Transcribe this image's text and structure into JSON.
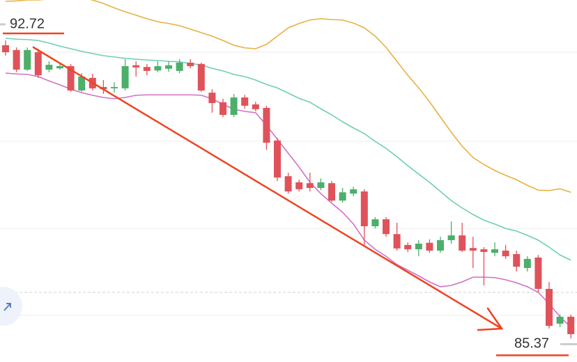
{
  "chart_data": {
    "type": "candlestick",
    "high_label": 92.72,
    "low_label": 85.37,
    "ylim": [
      84.96,
      93.28
    ],
    "up_color": "#4caf6a",
    "down_color": "#e0525a",
    "open": [
      92.24,
      92.13,
      91.68,
      92.08,
      91.68,
      91.71,
      91.76,
      91.2,
      91.49,
      91.28,
      91.25,
      91.25,
      91.78,
      91.74,
      91.66,
      91.7,
      91.65,
      91.84,
      91.81,
      91.15,
      90.93,
      90.64,
      91.04,
      90.88,
      90.8,
      90.05,
      89.23,
      89.09,
      89.07,
      88.96,
      89.07,
      88.67,
      88.83,
      88.88,
      88.08,
      88.24,
      87.9,
      87.65,
      87.55,
      87.7,
      87.52,
      87.76,
      87.87,
      87.58,
      87.55,
      87.47,
      87.52,
      87.44,
      87.12,
      87.36,
      86.64,
      85.84,
      86.0
    ],
    "high": [
      92.35,
      92.19,
      92.19,
      92.16,
      91.87,
      91.81,
      91.81,
      91.6,
      91.58,
      91.44,
      91.39,
      91.92,
      91.87,
      91.81,
      91.87,
      91.87,
      91.92,
      91.92,
      91.84,
      91.23,
      91.01,
      91.12,
      91.1,
      90.94,
      90.85,
      90.11,
      89.31,
      89.15,
      89.31,
      89.18,
      89.12,
      88.96,
      88.99,
      88.93,
      88.29,
      88.29,
      88.16,
      87.71,
      87.76,
      87.78,
      87.84,
      88.19,
      88.16,
      87.84,
      87.6,
      87.71,
      87.65,
      87.52,
      87.39,
      87.42,
      86.8,
      86.05,
      86.05
    ],
    "low": [
      92.0,
      91.62,
      91.65,
      91.49,
      91.62,
      91.68,
      91.17,
      91.17,
      91.2,
      91.12,
      91.15,
      91.2,
      91.52,
      91.55,
      91.62,
      91.63,
      91.6,
      91.71,
      91.17,
      90.69,
      90.59,
      90.59,
      90.78,
      90.72,
      89.84,
      89.12,
      88.83,
      88.88,
      88.88,
      88.91,
      88.64,
      88.62,
      88.77,
      87.65,
      88.03,
      87.84,
      87.52,
      87.49,
      87.39,
      87.47,
      87.47,
      87.68,
      87.49,
      87.12,
      86.72,
      87.39,
      87.33,
      87.04,
      87.04,
      86.56,
      85.73,
      85.76,
      85.5
    ],
    "close": [
      92.08,
      91.68,
      92.13,
      91.55,
      91.79,
      91.76,
      91.2,
      91.52,
      91.25,
      91.23,
      91.28,
      91.76,
      91.73,
      91.65,
      91.76,
      91.78,
      91.84,
      91.76,
      91.2,
      90.91,
      90.64,
      91.04,
      90.85,
      90.77,
      90.0,
      89.2,
      88.88,
      88.93,
      88.96,
      89.09,
      88.67,
      88.86,
      88.93,
      88.08,
      88.24,
      87.9,
      87.57,
      87.55,
      87.68,
      87.52,
      87.76,
      87.87,
      87.52,
      87.52,
      87.49,
      87.55,
      87.39,
      87.15,
      87.33,
      86.64,
      85.79,
      86.0,
      85.6
    ],
    "overlays": [
      {
        "color": "#e8b040",
        "values": [
          93.25,
          93.26,
          93.28,
          93.28,
          93.3,
          93.31,
          93.33,
          93.33,
          93.28,
          93.2,
          93.1,
          93.01,
          92.93,
          92.85,
          92.78,
          92.74,
          92.69,
          92.61,
          92.53,
          92.45,
          92.35,
          92.24,
          92.18,
          92.16,
          92.26,
          92.45,
          92.64,
          92.74,
          92.82,
          92.85,
          92.83,
          92.82,
          92.75,
          92.64,
          92.45,
          92.19,
          91.87,
          91.55,
          91.26,
          90.94,
          90.59,
          90.24,
          89.92,
          89.66,
          89.5,
          89.36,
          89.25,
          89.15,
          89.02,
          88.91,
          88.9,
          88.94,
          88.86
        ]
      },
      {
        "color": "#6ccfb0",
        "values": [
          92.4,
          92.38,
          92.37,
          92.35,
          92.29,
          92.22,
          92.16,
          92.1,
          92.05,
          92.0,
          91.97,
          91.94,
          91.92,
          91.9,
          91.89,
          91.87,
          91.86,
          91.82,
          91.79,
          91.71,
          91.65,
          91.57,
          91.52,
          91.44,
          91.34,
          91.26,
          91.14,
          91.02,
          90.93,
          90.78,
          90.64,
          90.48,
          90.34,
          90.21,
          90.03,
          89.87,
          89.68,
          89.47,
          89.28,
          89.09,
          88.88,
          88.67,
          88.5,
          88.35,
          88.22,
          88.13,
          88.03,
          87.97,
          87.87,
          87.76,
          87.6,
          87.42,
          87.3
        ]
      },
      {
        "color": "#d070c8",
        "values": [
          91.6,
          91.58,
          91.57,
          91.52,
          91.42,
          91.33,
          91.23,
          91.15,
          91.09,
          91.04,
          91.01,
          91.04,
          91.09,
          91.1,
          91.1,
          91.1,
          91.1,
          91.1,
          91.09,
          91.01,
          90.88,
          90.77,
          90.72,
          90.69,
          90.4,
          90.08,
          89.76,
          89.44,
          89.09,
          88.83,
          88.61,
          88.4,
          88.13,
          87.76,
          87.55,
          87.39,
          87.2,
          87.07,
          86.94,
          86.8,
          86.69,
          86.72,
          86.8,
          86.91,
          86.91,
          86.9,
          86.85,
          86.78,
          86.69,
          86.56,
          86.3,
          86.0,
          85.76
        ]
      }
    ]
  }
}
